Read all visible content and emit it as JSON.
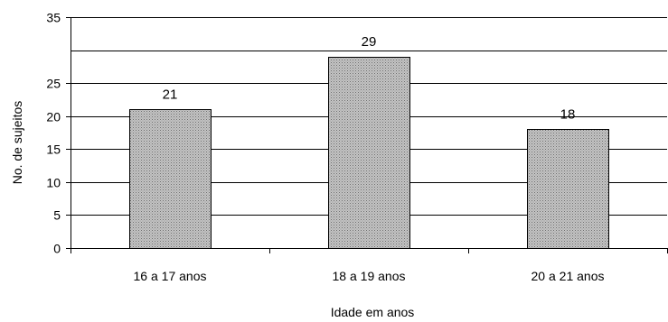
{
  "chart_data": {
    "type": "bar",
    "categories": [
      "16 a 17 anos",
      "18 a 19 anos",
      "20 a 21 anos"
    ],
    "values": [
      21,
      29,
      18
    ],
    "data_labels": [
      "21",
      "29",
      "18"
    ],
    "xlabel": "Idade em anos",
    "ylabel": "No. de sujeitos",
    "ylim": [
      0,
      35
    ],
    "yticks": [
      0,
      5,
      10,
      15,
      20,
      25,
      35
    ],
    "gridlines": [
      5,
      10,
      15,
      20,
      25,
      30,
      35
    ],
    "grid": true,
    "bar_fill": "#bdbdbd",
    "bar_pattern": "dotted-gray"
  }
}
